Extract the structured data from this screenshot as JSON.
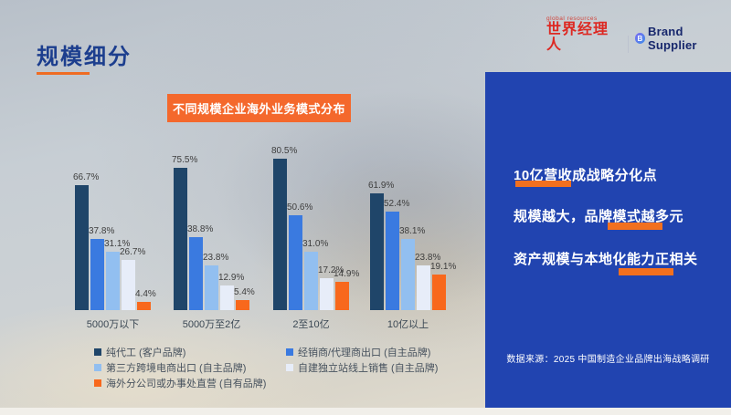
{
  "slide": {
    "title": "规模细分",
    "source": "数据来源：2025 中国制造企业品牌出海战略调研"
  },
  "logos": {
    "global_resources": "global resources",
    "world_manager": "世界经理人",
    "brand_supplier_icon": "B",
    "brand_supplier": "Brand Supplier"
  },
  "insights": [
    {
      "text": "10亿营收成战略分化点"
    },
    {
      "text": "规模越大，品牌模式越多元"
    },
    {
      "text": "资产规模与本地化能力正相关"
    }
  ],
  "chart_data": {
    "type": "bar",
    "title": "不同规模企业海外业务模式分布",
    "categories": [
      "5000万以下",
      "5000万至2亿",
      "2至10亿",
      "10亿以上"
    ],
    "series": [
      {
        "name": "纯代工 (客户品牌)",
        "color": "#1f4569",
        "values": [
          66.7,
          75.5,
          80.5,
          61.9
        ]
      },
      {
        "name": "经销商/代理商出口 (自主品牌)",
        "color": "#3a7ae0",
        "values": [
          37.8,
          38.8,
          50.6,
          52.4
        ]
      },
      {
        "name": "第三方跨境电商出口 (自主品牌)",
        "color": "#92bff0",
        "values": [
          31.1,
          23.8,
          31.0,
          38.1
        ]
      },
      {
        "name": "自建独立站线上销售 (自主品牌)",
        "color": "#e7edf9",
        "values": [
          26.7,
          12.9,
          17.2,
          23.8
        ]
      },
      {
        "name": "海外分公司或办事处直营 (自有品牌)",
        "color": "#f8681c",
        "values": [
          4.4,
          5.4,
          14.9,
          19.1
        ]
      }
    ],
    "value_suffix": "%",
    "ylim": [
      0,
      100
    ],
    "grid": false,
    "legend_position": "bottom-left"
  },
  "colors": {
    "panel_blue": "#2144b0",
    "accent_orange": "#f4682c",
    "title_navy": "#1c3e8e",
    "logo_red": "#dd2822",
    "brand_navy": "#17276c"
  }
}
